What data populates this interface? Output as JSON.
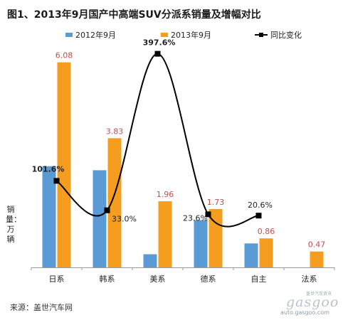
{
  "title": "图1、2013年9月国产中高端SUV分派系销量及增幅对比",
  "ylabel": "销量：万辆",
  "source": "来源：盖世汽车网",
  "watermark": {
    "main": "gasgoo",
    "top": "盖世汽车资讯",
    "url": "auto.gasgoo.com"
  },
  "colors": {
    "series_2012": "#5b9bd5",
    "series_2013": "#f59d1e",
    "line": "#000000",
    "label_2013": "#c0504d",
    "label_line": "#222222"
  },
  "chart_data": {
    "type": "bar",
    "categories": [
      "日系",
      "韩系",
      "美系",
      "德系",
      "自主",
      "法系"
    ],
    "series": [
      {
        "name": "2012年9月",
        "type": "bar",
        "values": [
          3.0,
          2.88,
          0.39,
          1.4,
          0.71,
          null
        ]
      },
      {
        "name": "2013年9月",
        "type": "bar",
        "values": [
          6.08,
          3.83,
          1.96,
          1.73,
          0.86,
          0.47
        ],
        "labels": [
          "6.08",
          "3.83",
          "1.96",
          "1.73",
          "0.86",
          "0.47"
        ]
      },
      {
        "name": "同比变化",
        "type": "line",
        "values": [
          101.6,
          33.0,
          397.6,
          23.6,
          20.6,
          null
        ],
        "labels": [
          "101.6%",
          "33.0%",
          "397.6%",
          "23.6%",
          "20.6%",
          ""
        ]
      }
    ],
    "ylim": [
      0,
      7
    ],
    "secondary_ylim": [
      -100,
      450
    ],
    "legend": "top",
    "grid": false
  }
}
